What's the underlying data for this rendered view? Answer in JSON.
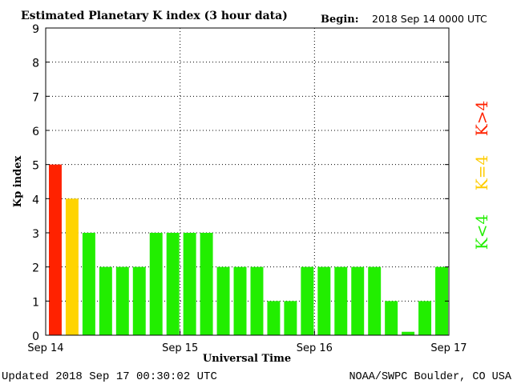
{
  "header": {
    "title": "Estimated Planetary K index (3 hour data)",
    "begin_label": "Begin:",
    "begin_value": "2018 Sep 14 0000 UTC"
  },
  "footer": {
    "updated": "Updated 2018 Sep 17 00:30:02 UTC",
    "source": "NOAA/SWPC Boulder, CO USA"
  },
  "legend": {
    "high": "K>4",
    "mid": "K=4",
    "low": "K<4"
  },
  "colors": {
    "high": "#ff2200",
    "mid": "#ffd400",
    "low": "#22ee00",
    "grid": "#000000",
    "mid_text": "#ffcc00"
  },
  "chart_data": {
    "type": "bar",
    "title": "Estimated Planetary K index (3 hour data)",
    "xlabel": "Universal Time",
    "ylabel": "Kp index",
    "ylim": [
      0,
      9
    ],
    "yticks": [
      "0",
      "1",
      "2",
      "3",
      "4",
      "5",
      "6",
      "7",
      "8",
      "9"
    ],
    "xticks": [
      "Sep 14",
      "Sep 15",
      "Sep 16",
      "Sep 17"
    ],
    "grid": true,
    "values": [
      5,
      4,
      3,
      2,
      2,
      2,
      3,
      3,
      3,
      3,
      2,
      2,
      2,
      1,
      1,
      2,
      2,
      2,
      2,
      2,
      1,
      0.1,
      1,
      2
    ]
  }
}
